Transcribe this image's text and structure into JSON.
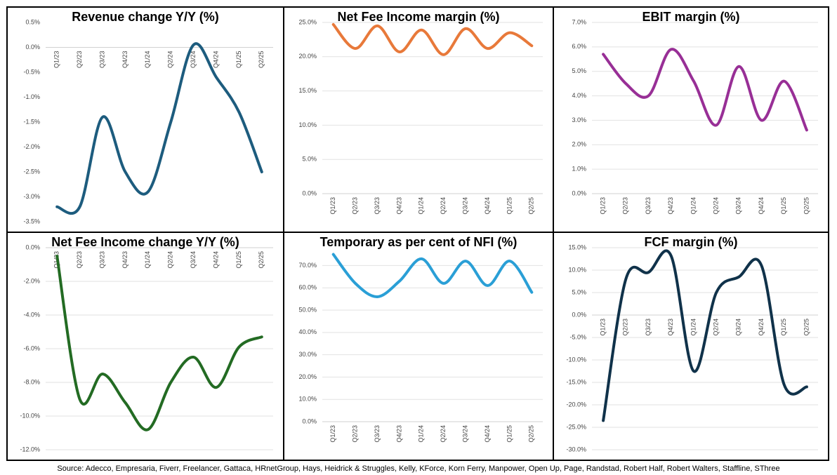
{
  "chart_data": [
    {
      "type": "line",
      "title": "Revenue change Y/Y (%)",
      "categories": [
        "Q1/23",
        "Q2/23",
        "Q3/23",
        "Q4/23",
        "Q1/24",
        "Q2/24",
        "Q3/24",
        "Q4/24",
        "Q1/25",
        "Q2/25"
      ],
      "values": [
        -3.2,
        -3.2,
        -1.4,
        -2.5,
        -2.9,
        -1.5,
        0.05,
        -0.6,
        -1.3,
        -2.5
      ],
      "color": "#1d5c7e",
      "ylim": [
        -3.5,
        0.5
      ],
      "yticks": [
        {
          "value": 0.5,
          "label": "0.5%"
        },
        {
          "value": 0,
          "label": "0.0%"
        },
        {
          "value": -0.5,
          "label": "-0.5%"
        },
        {
          "value": -1,
          "label": "-1.0%"
        },
        {
          "value": -1.5,
          "label": "-1.5%"
        },
        {
          "value": -2,
          "label": "-2.0%"
        },
        {
          "value": -2.5,
          "label": "-2.5%"
        },
        {
          "value": -3,
          "label": "-3.0%"
        },
        {
          "value": -3.5,
          "label": "-3.5%"
        }
      ],
      "grid": false
    },
    {
      "type": "line",
      "title": "Net Fee Income margin (%)",
      "categories": [
        "Q1/23",
        "Q2/23",
        "Q3/23",
        "Q4/23",
        "Q1/24",
        "Q2/24",
        "Q3/24",
        "Q4/24",
        "Q1/25",
        "Q2/25"
      ],
      "values": [
        24.7,
        21.2,
        24.5,
        20.7,
        23.9,
        20.3,
        24.1,
        21.2,
        23.5,
        21.6
      ],
      "color": "#e8793a",
      "ylim": [
        0,
        25
      ],
      "yticks": [
        {
          "value": 0,
          "label": "0.0%"
        },
        {
          "value": 5,
          "label": "5.0%"
        },
        {
          "value": 10,
          "label": "10.0%"
        },
        {
          "value": 15,
          "label": "15.0%"
        },
        {
          "value": 20,
          "label": "20.0%"
        },
        {
          "value": 25,
          "label": "25.0%"
        }
      ],
      "grid": true
    },
    {
      "type": "line",
      "title": "EBIT margin (%)",
      "categories": [
        "Q1/23",
        "Q2/23",
        "Q3/23",
        "Q4/23",
        "Q1/24",
        "Q2/24",
        "Q3/24",
        "Q4/24",
        "Q1/25",
        "Q2/25"
      ],
      "values": [
        5.7,
        4.5,
        4.0,
        5.9,
        4.6,
        2.8,
        5.2,
        3.0,
        4.6,
        2.6
      ],
      "color": "#982f96",
      "ylim": [
        0,
        7
      ],
      "yticks": [
        {
          "value": 0,
          "label": "0.0%"
        },
        {
          "value": 1,
          "label": "1.0%"
        },
        {
          "value": 2,
          "label": "2.0%"
        },
        {
          "value": 3,
          "label": "3.0%"
        },
        {
          "value": 4,
          "label": "4.0%"
        },
        {
          "value": 5,
          "label": "5.0%"
        },
        {
          "value": 6,
          "label": "6.0%"
        },
        {
          "value": 7,
          "label": "7.0%"
        }
      ],
      "grid": true
    },
    {
      "type": "line",
      "title": "Net Fee Income change Y/Y (%)",
      "categories": [
        "Q1/23",
        "Q2/23",
        "Q3/23",
        "Q4/23",
        "Q1/24",
        "Q2/24",
        "Q3/24",
        "Q4/24",
        "Q1/25",
        "Q2/25"
      ],
      "values": [
        -0.5,
        -9.0,
        -7.5,
        -9.2,
        -10.8,
        -8.0,
        -6.5,
        -8.3,
        -5.9,
        -5.3
      ],
      "color": "#236b23",
      "ylim": [
        -12,
        0
      ],
      "yticks": [
        {
          "value": 0,
          "label": "0.0%"
        },
        {
          "value": -2,
          "label": "-2.0%"
        },
        {
          "value": -4,
          "label": "-4.0%"
        },
        {
          "value": -6,
          "label": "-6.0%"
        },
        {
          "value": -8,
          "label": "-8.0%"
        },
        {
          "value": -10,
          "label": "-10.0%"
        },
        {
          "value": -12,
          "label": "-12.0%"
        }
      ],
      "grid": true
    },
    {
      "type": "line",
      "title": "Temporary as per cent of NFI (%)",
      "categories": [
        "Q1/23",
        "Q2/23",
        "Q3/23",
        "Q4/23",
        "Q1/24",
        "Q2/24",
        "Q3/24",
        "Q4/24",
        "Q1/25",
        "Q2/25"
      ],
      "values": [
        75,
        62,
        56,
        63,
        73,
        62,
        72,
        61,
        72,
        58
      ],
      "color": "#2a9fd6",
      "ylim": [
        0,
        78
      ],
      "yticks": [
        {
          "value": 0,
          "label": "0.0%"
        },
        {
          "value": 10,
          "label": "10.0%"
        },
        {
          "value": 20,
          "label": "20.0%"
        },
        {
          "value": 30,
          "label": "30.0%"
        },
        {
          "value": 40,
          "label": "40.0%"
        },
        {
          "value": 50,
          "label": "50.0%"
        },
        {
          "value": 60,
          "label": "60.0%"
        },
        {
          "value": 70,
          "label": "70.0%"
        }
      ],
      "grid": true
    },
    {
      "type": "line",
      "title": "FCF margin (%)",
      "categories": [
        "Q1/23",
        "Q2/23",
        "Q3/23",
        "Q4/23",
        "Q1/24",
        "Q2/24",
        "Q3/24",
        "Q4/24",
        "Q1/25",
        "Q2/25"
      ],
      "values": [
        -23.5,
        8,
        9.5,
        13.2,
        -12.5,
        5,
        8.5,
        11,
        -15.5,
        -16
      ],
      "color": "#10324a",
      "ylim": [
        -30,
        15
      ],
      "yticks": [
        {
          "value": 15,
          "label": "15.0%"
        },
        {
          "value": 10,
          "label": "10.0%"
        },
        {
          "value": 5,
          "label": "5.0%"
        },
        {
          "value": 0,
          "label": "0.0%"
        },
        {
          "value": -5,
          "label": "-5.0%"
        },
        {
          "value": -10,
          "label": "-10.0%"
        },
        {
          "value": -15,
          "label": "-15.0%"
        },
        {
          "value": -20,
          "label": "-20.0%"
        },
        {
          "value": -25,
          "label": "-25.0%"
        },
        {
          "value": -30,
          "label": "-30.0%"
        }
      ],
      "grid": true
    }
  ],
  "source": "Source: Adecco, Empresaria, Fiverr, Freelancer, Gattaca, HRnetGroup, Hays, Heidrick & Struggles, Kelly,  KForce, Korn Ferry, Manpower, Open Up, Page, Randstad, Robert Half, Robert Walters, Staffline, SThree"
}
